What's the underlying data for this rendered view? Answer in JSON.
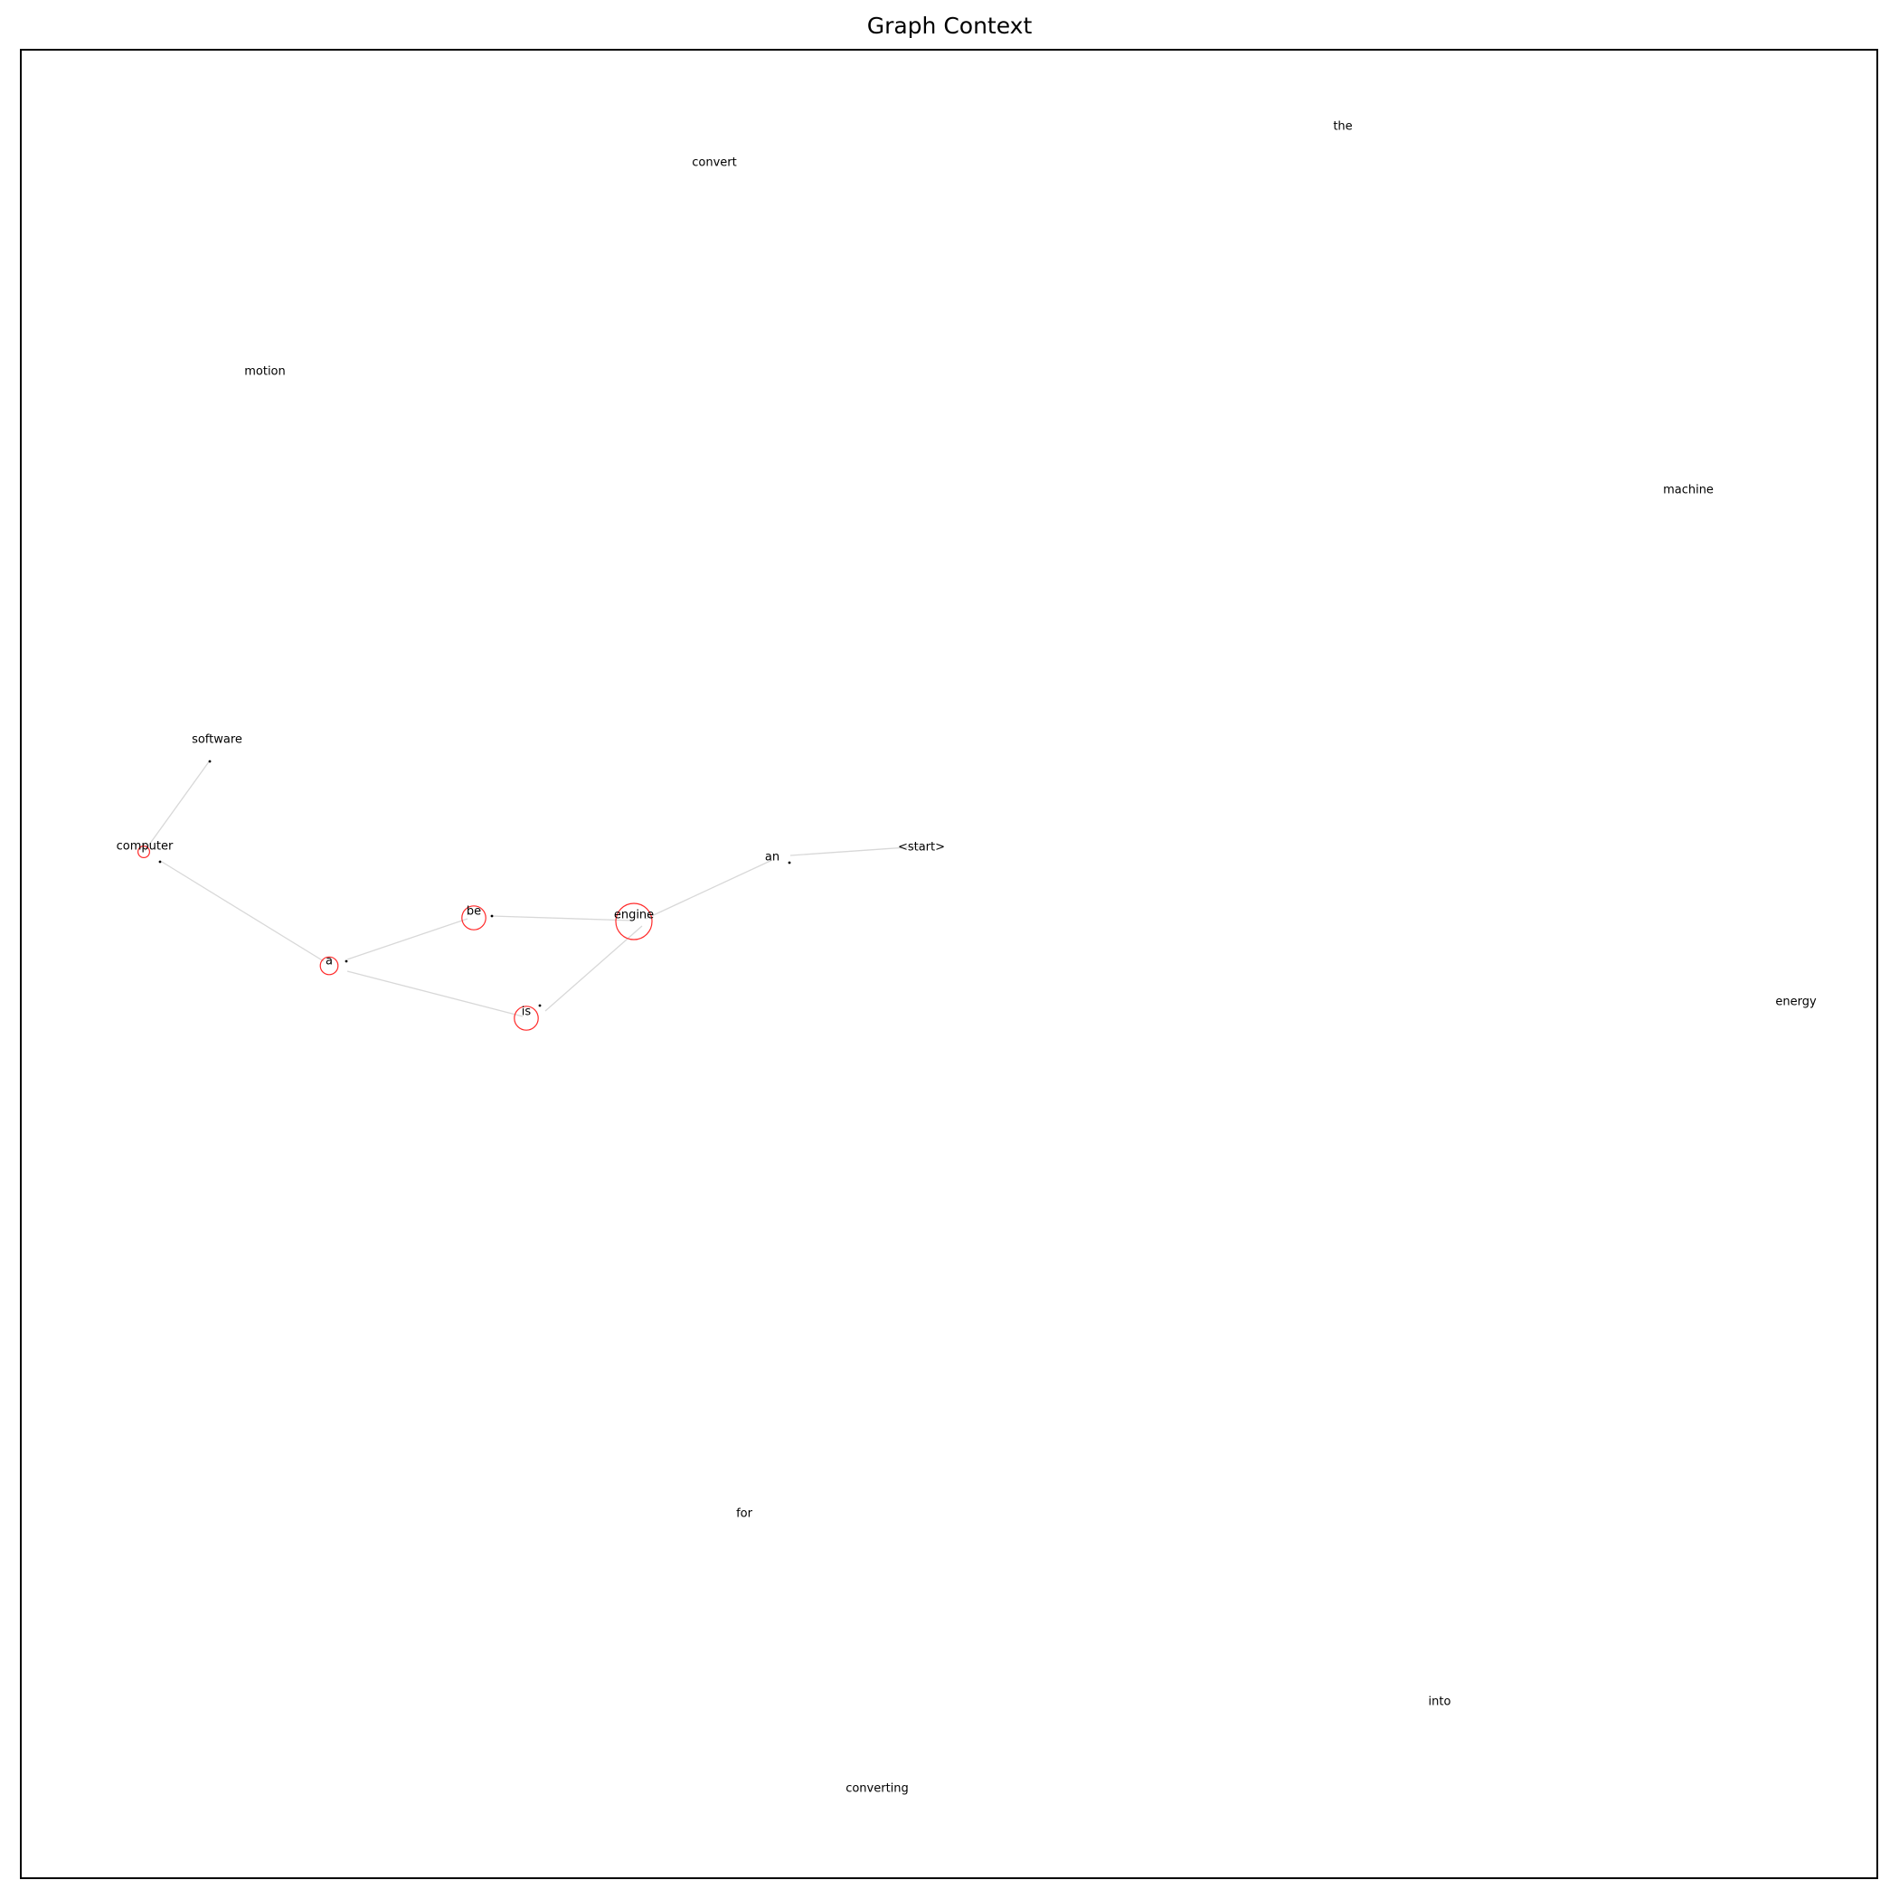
{
  "title": "Graph Context",
  "colors": {
    "edge": "#d8d8d8",
    "node_ring": "#ff2a2a",
    "dot": "#000000"
  },
  "nodes": [
    {
      "id": "the",
      "label": "the",
      "weight": 0
    },
    {
      "id": "convert",
      "label": "convert",
      "weight": 0
    },
    {
      "id": "motion",
      "label": "motion",
      "weight": 0
    },
    {
      "id": "machine",
      "label": "machine",
      "weight": 0
    },
    {
      "id": "software",
      "label": "software",
      "weight": 0
    },
    {
      "id": "computer",
      "label": "computer",
      "weight": 1
    },
    {
      "id": "an",
      "label": "an",
      "weight": 0
    },
    {
      "id": "start",
      "label": "<start>",
      "weight": 0
    },
    {
      "id": "be",
      "label": "be",
      "weight": 3
    },
    {
      "id": "engine",
      "label": "engine",
      "weight": 5
    },
    {
      "id": "a",
      "label": "a",
      "weight": 2
    },
    {
      "id": "is",
      "label": "is",
      "weight": 3
    },
    {
      "id": "energy",
      "label": "energy",
      "weight": 0
    },
    {
      "id": "for",
      "label": "for",
      "weight": 0
    },
    {
      "id": "into",
      "label": "into",
      "weight": 0
    },
    {
      "id": "converting",
      "label": "converting",
      "weight": 0
    }
  ],
  "edges": [
    [
      "start",
      "an"
    ],
    [
      "an",
      "engine"
    ],
    [
      "engine",
      "be"
    ],
    [
      "engine",
      "is"
    ],
    [
      "be",
      "a"
    ],
    [
      "is",
      "a"
    ],
    [
      "a",
      "computer"
    ],
    [
      "computer",
      "software"
    ]
  ]
}
